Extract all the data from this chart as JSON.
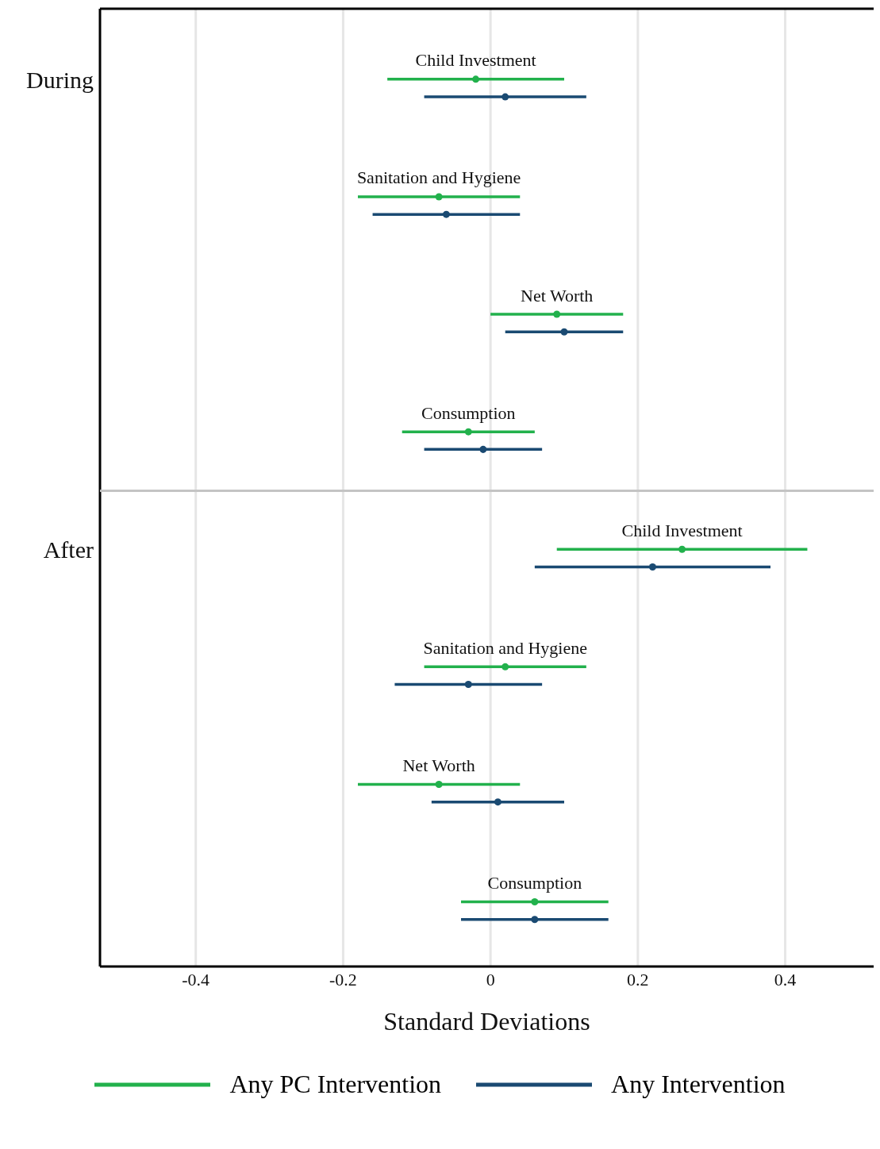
{
  "chart_data": {
    "type": "scatter",
    "orientation": "horizontal",
    "xlabel": "Standard Deviations",
    "categories": [
      "Child Investment",
      "Sanitation and Hygiene",
      "Net Worth",
      "Consumption",
      "Child Investment",
      "Sanitation and Hygiene",
      "Net Worth",
      "Consumption"
    ],
    "series": [
      {
        "name": "Any PC Intervention",
        "color": "#22b14c",
        "values": [
          -0.02,
          -0.07,
          0.09,
          -0.03,
          0.26,
          0.02,
          -0.07,
          0.06
        ],
        "errors": [
          0.12,
          0.11,
          0.09,
          0.09,
          0.17,
          0.11,
          0.11,
          0.1
        ]
      },
      {
        "name": "Any Intervention",
        "color": "#1a4a72",
        "values": [
          0.02,
          -0.06,
          0.1,
          -0.01,
          0.22,
          -0.03,
          0.01,
          0.06
        ],
        "errors": [
          0.11,
          0.1,
          0.08,
          0.08,
          0.16,
          0.1,
          0.09,
          0.1
        ]
      }
    ],
    "annotations": [
      "During",
      "After"
    ],
    "xlim": [
      -0.53,
      0.52
    ],
    "xticks": [
      -0.4,
      -0.2,
      0,
      0.2,
      0.4
    ],
    "grid": "x",
    "marker": "circle",
    "legend": "bottom"
  }
}
